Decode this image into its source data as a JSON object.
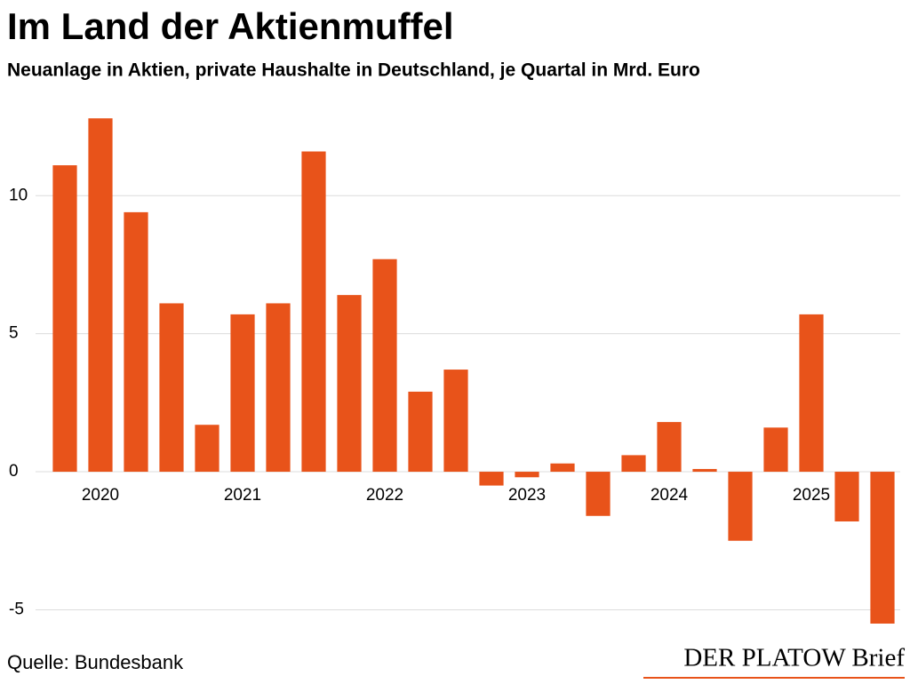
{
  "chart_data": {
    "type": "bar",
    "title": "Im Land der Aktienmuffel",
    "subtitle": "Neuanlage in Aktien, private Haushalte in Deutschland, je Quartal in Mrd. Euro",
    "source": "Quelle: Bundesbank",
    "brand": "DER PLATOW Brief",
    "categories": [
      null,
      "2020",
      null,
      null,
      null,
      "2021",
      null,
      null,
      null,
      "2022",
      null,
      null,
      null,
      "2023",
      null,
      null,
      null,
      "2024",
      null,
      null,
      null,
      "2025",
      null,
      null
    ],
    "values": [
      11.1,
      12.8,
      9.4,
      6.1,
      1.7,
      5.7,
      6.1,
      11.6,
      6.4,
      7.7,
      2.9,
      3.7,
      -0.5,
      -0.2,
      0.3,
      -1.6,
      0.6,
      1.8,
      0.1,
      -2.5,
      1.6,
      5.7,
      -1.8,
      -5.5
    ],
    "color": "#e8531a",
    "ylim": [
      -5.5,
      13
    ],
    "yticks": [
      -5,
      0,
      5,
      10
    ],
    "grid": true
  }
}
